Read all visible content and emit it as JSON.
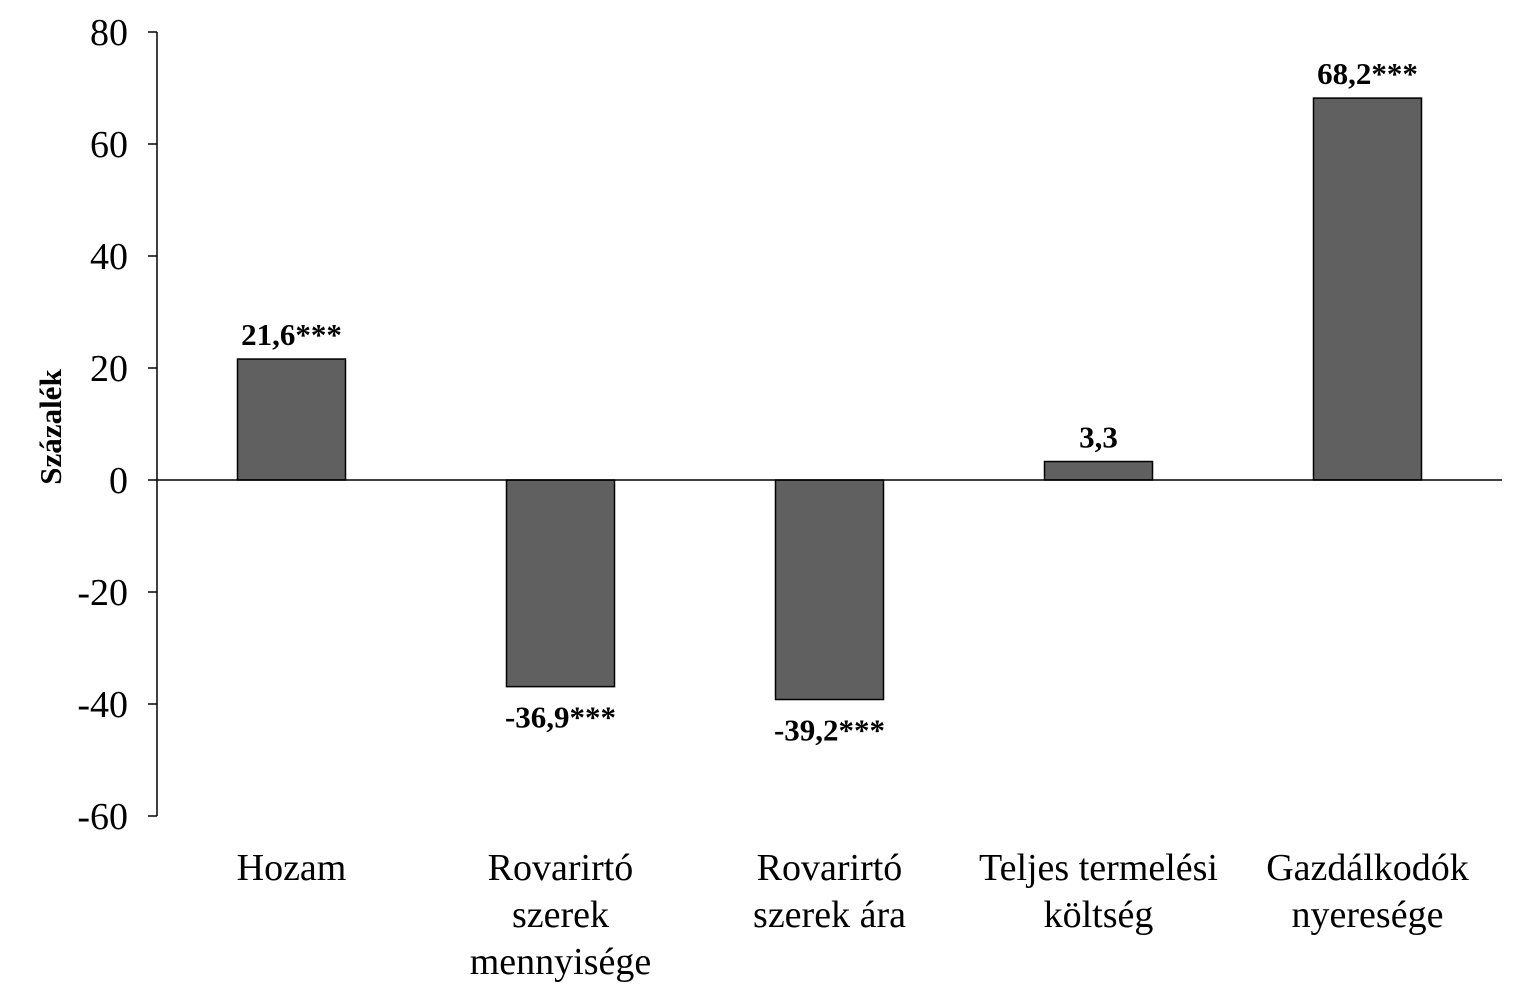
{
  "chart_data": {
    "type": "bar",
    "ylabel": "Százalék",
    "ylim": [
      -60,
      80
    ],
    "yticks": [
      80,
      60,
      40,
      20,
      0,
      -20,
      -40,
      -60
    ],
    "grid": false,
    "bar_color": "#606060",
    "categories": [
      [
        "Hozam"
      ],
      [
        "Rovarirtó",
        "szerek",
        "mennyisége"
      ],
      [
        "Rovarirtó",
        "szerek ára"
      ],
      [
        "Teljes termelési",
        "költség"
      ],
      [
        "Gazdálkodók",
        "nyeresége"
      ]
    ],
    "values": [
      21.6,
      -36.9,
      -39.2,
      3.3,
      68.2
    ],
    "data_labels": [
      "21,6***",
      "-36,9***",
      "-39,2***",
      "3,3",
      "68,2***"
    ]
  }
}
